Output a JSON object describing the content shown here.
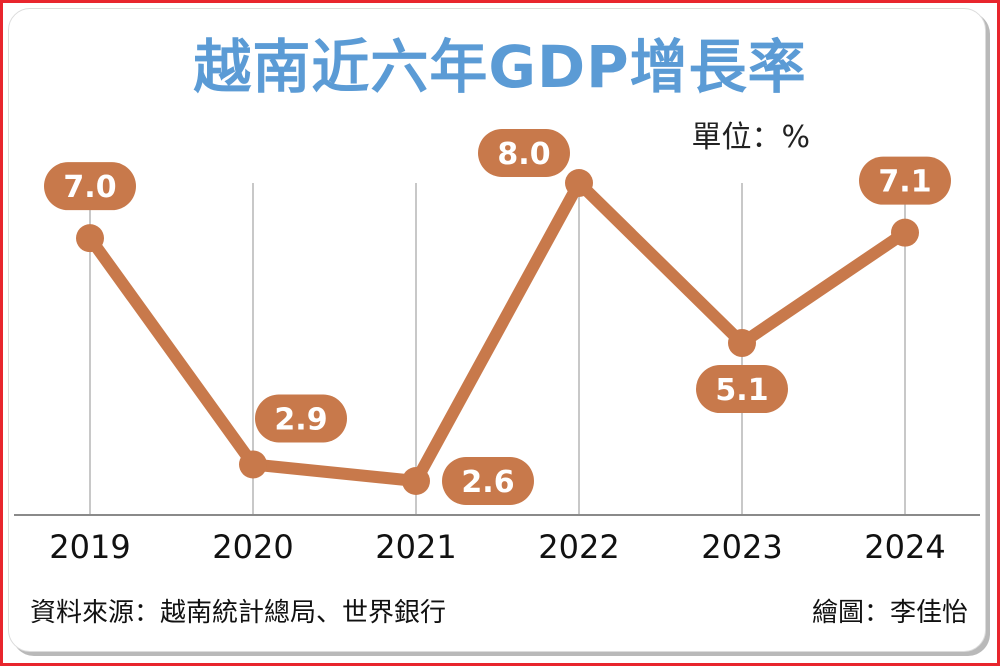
{
  "chart_data": {
    "type": "line",
    "title": "越南近六年GDP增長率",
    "unit_label": "單位：%",
    "categories": [
      "2019",
      "2020",
      "2021",
      "2022",
      "2023",
      "2024"
    ],
    "series": [
      {
        "values": [
          7.0,
          2.9,
          2.6,
          8.0,
          5.1,
          7.1
        ]
      }
    ],
    "data_labels": [
      "7.0",
      "2.9",
      "2.6",
      "8.0",
      "5.1",
      "7.1"
    ],
    "ylim": [
      2.0,
      9.0
    ],
    "grid": "vertical",
    "line_color": "#c8794b",
    "title_color": "#5b9bd5"
  },
  "footer": {
    "source": "資料來源：越南統計總局、世界銀行",
    "credit": "繪圖：李佳怡"
  }
}
